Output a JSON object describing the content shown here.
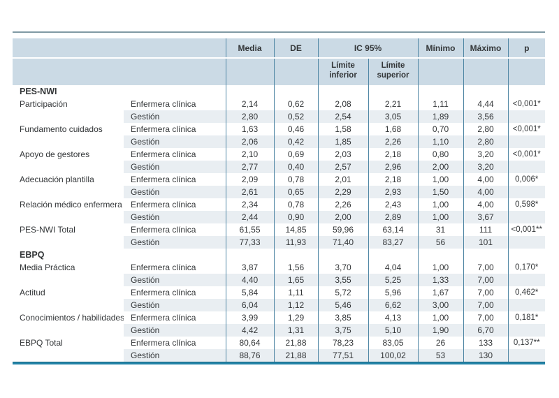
{
  "colors": {
    "column_line": "#4f86a4",
    "header_background": "#cbdae5",
    "row_stripe": "#e9eef2",
    "top_rule": "#8099a4",
    "bottom_rule": "#2484a8",
    "text": "#333638"
  },
  "table": {
    "header": {
      "media": "Media",
      "de": "DE",
      "ic95": "IC 95%",
      "limite_inferior": "Límite inferior",
      "limite_superior": "Límite superior",
      "minimo": "Mínimo",
      "maximo": "Máximo",
      "p": "p"
    },
    "sections": [
      {
        "label": "PES-NWI",
        "rows": [
          {
            "variable": "Participación",
            "group": "Enfermera clínica",
            "media": "2,14",
            "de": "0,62",
            "ic_inferior": "2,08",
            "ic_superior": "2,21",
            "minimo": "1,11",
            "maximo": "4,44",
            "p": "<0,001*"
          },
          {
            "variable": "",
            "group": "Gestión",
            "media": "2,80",
            "de": "0,52",
            "ic_inferior": "2,54",
            "ic_superior": "3,05",
            "minimo": "1,89",
            "maximo": "3,56",
            "p": ""
          },
          {
            "variable": "Fundamento cuidados",
            "group": "Enfermera clínica",
            "media": "1,63",
            "de": "0,46",
            "ic_inferior": "1,58",
            "ic_superior": "1,68",
            "minimo": "0,70",
            "maximo": "2,80",
            "p": "<0,001*"
          },
          {
            "variable": "",
            "group": "Gestión",
            "media": "2,06",
            "de": "0,42",
            "ic_inferior": "1,85",
            "ic_superior": "2,26",
            "minimo": "1,10",
            "maximo": "2,80",
            "p": ""
          },
          {
            "variable": "Apoyo de gestores",
            "group": "Enfermera clínica",
            "media": "2,10",
            "de": "0,69",
            "ic_inferior": "2,03",
            "ic_superior": "2,18",
            "minimo": "0,80",
            "maximo": "3,20",
            "p": "<0,001*"
          },
          {
            "variable": "",
            "group": "Gestión",
            "media": "2,77",
            "de": "0,40",
            "ic_inferior": "2,57",
            "ic_superior": "2,96",
            "minimo": "2,00",
            "maximo": "3,20",
            "p": ""
          },
          {
            "variable": "Adecuación plantilla",
            "group": "Enfermera clínica",
            "media": "2,09",
            "de": "0,78",
            "ic_inferior": "2,01",
            "ic_superior": "2,18",
            "minimo": "1,00",
            "maximo": "4,00",
            "p": "0,006*"
          },
          {
            "variable": "",
            "group": "Gestión",
            "media": "2,61",
            "de": "0,65",
            "ic_inferior": "2,29",
            "ic_superior": "2,93",
            "minimo": "1,50",
            "maximo": "4,00",
            "p": ""
          },
          {
            "variable": "Relación médico enfermera",
            "group": "Enfermera clínica",
            "media": "2,34",
            "de": "0,78",
            "ic_inferior": "2,26",
            "ic_superior": "2,43",
            "minimo": "1,00",
            "maximo": "4,00",
            "p": "0,598*"
          },
          {
            "variable": "",
            "group": "Gestión",
            "media": "2,44",
            "de": "0,90",
            "ic_inferior": "2,00",
            "ic_superior": "2,89",
            "minimo": "1,00",
            "maximo": "3,67",
            "p": ""
          },
          {
            "variable": "PES-NWI Total",
            "group": "Enfermera clínica",
            "media": "61,55",
            "de": "14,85",
            "ic_inferior": "59,96",
            "ic_superior": "63,14",
            "minimo": "31",
            "maximo": "111",
            "p": "<0,001**"
          },
          {
            "variable": "",
            "group": "Gestión",
            "media": "77,33",
            "de": "11,93",
            "ic_inferior": "71,40",
            "ic_superior": "83,27",
            "minimo": "56",
            "maximo": "101",
            "p": ""
          }
        ]
      },
      {
        "label": "EBPQ",
        "rows": [
          {
            "variable": "Media Práctica",
            "group": "Enfermera clínica",
            "media": "3,87",
            "de": "1,56",
            "ic_inferior": "3,70",
            "ic_superior": "4,04",
            "minimo": "1,00",
            "maximo": "7,00",
            "p": "0,170*"
          },
          {
            "variable": "",
            "group": "Gestión",
            "media": "4,40",
            "de": "1,65",
            "ic_inferior": "3,55",
            "ic_superior": "5,25",
            "minimo": "1,33",
            "maximo": "7,00",
            "p": ""
          },
          {
            "variable": "Actitud",
            "group": "Enfermera clínica",
            "media": "5,84",
            "de": "1,11",
            "ic_inferior": "5,72",
            "ic_superior": "5,96",
            "minimo": "1,67",
            "maximo": "7,00",
            "p": "0,462*"
          },
          {
            "variable": "",
            "group": "Gestión",
            "media": "6,04",
            "de": "1,12",
            "ic_inferior": "5,46",
            "ic_superior": "6,62",
            "minimo": "3,00",
            "maximo": "7,00",
            "p": ""
          },
          {
            "variable": "Conocimientos / habilidades",
            "group": "Enfermera clínica",
            "media": "3,99",
            "de": "1,29",
            "ic_inferior": "3,85",
            "ic_superior": "4,13",
            "minimo": "1,00",
            "maximo": "7,00",
            "p": "0,181*"
          },
          {
            "variable": "",
            "group": "Gestión",
            "media": "4,42",
            "de": "1,31",
            "ic_inferior": "3,75",
            "ic_superior": "5,10",
            "minimo": "1,90",
            "maximo": "6,70",
            "p": ""
          },
          {
            "variable": "EBPQ Total",
            "group": "Enfermera clínica",
            "media": "80,64",
            "de": "21,88",
            "ic_inferior": "78,23",
            "ic_superior": "83,05",
            "minimo": "26",
            "maximo": "133",
            "p": "0,137**"
          },
          {
            "variable": "",
            "group": "Gestión",
            "media": "88,76",
            "de": "21,88",
            "ic_inferior": "77,51",
            "ic_superior": "100,02",
            "minimo": "53",
            "maximo": "130",
            "p": ""
          }
        ]
      }
    ]
  }
}
